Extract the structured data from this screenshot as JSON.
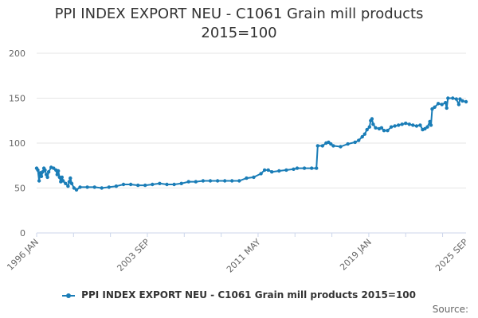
{
  "chart_data": {
    "type": "line",
    "title_line1": "PPI INDEX EXPORT NEU - C1061 Grain mill products",
    "title_line2": "2015=100",
    "ylim": [
      0,
      200
    ],
    "yticks": [
      0,
      50,
      100,
      150,
      200
    ],
    "xrange": [
      1996.0,
      2025.67
    ],
    "xticks": [
      {
        "label": "1996 JAN",
        "x": 1996.0
      },
      {
        "label": "2003 SEP",
        "x": 2003.67
      },
      {
        "label": "2011 MAY",
        "x": 2011.33
      },
      {
        "label": "2019 JAN",
        "x": 2019.0
      },
      {
        "label": "2025 SEP",
        "x": 2025.67
      }
    ],
    "legend": {
      "label": "PPI INDEX EXPORT NEU - C1061 Grain mill products 2015=100",
      "placement": "bottom-center"
    },
    "credits": "Source:",
    "color": "#1a7db7",
    "series": [
      {
        "name": "PPI INDEX EXPORT NEU - C1061 Grain mill products 2015=100",
        "points": [
          [
            1996.0,
            72
          ],
          [
            1996.08,
            70
          ],
          [
            1996.17,
            58
          ],
          [
            1996.25,
            67
          ],
          [
            1996.33,
            63
          ],
          [
            1996.42,
            68
          ],
          [
            1996.5,
            72
          ],
          [
            1996.58,
            70
          ],
          [
            1996.67,
            65
          ],
          [
            1996.75,
            62
          ],
          [
            1996.83,
            68
          ],
          [
            1997.0,
            73
          ],
          [
            1997.17,
            72
          ],
          [
            1997.33,
            70
          ],
          [
            1997.42,
            65
          ],
          [
            1997.5,
            69
          ],
          [
            1997.58,
            62
          ],
          [
            1997.67,
            57
          ],
          [
            1997.75,
            62
          ],
          [
            1997.83,
            58
          ],
          [
            1998.0,
            55
          ],
          [
            1998.17,
            52
          ],
          [
            1998.25,
            57
          ],
          [
            1998.33,
            61
          ],
          [
            1998.42,
            55
          ],
          [
            1998.58,
            50
          ],
          [
            1998.75,
            48
          ],
          [
            1999.0,
            51
          ],
          [
            1999.5,
            51
          ],
          [
            2000.0,
            51
          ],
          [
            2000.5,
            50
          ],
          [
            2001.0,
            51
          ],
          [
            2001.5,
            52
          ],
          [
            2002.0,
            54
          ],
          [
            2002.5,
            54
          ],
          [
            2003.0,
            53
          ],
          [
            2003.5,
            53
          ],
          [
            2004.0,
            54
          ],
          [
            2004.5,
            55
          ],
          [
            2005.0,
            54
          ],
          [
            2005.5,
            54
          ],
          [
            2006.0,
            55
          ],
          [
            2006.5,
            57
          ],
          [
            2007.0,
            57
          ],
          [
            2007.5,
            58
          ],
          [
            2008.0,
            58
          ],
          [
            2008.5,
            58
          ],
          [
            2009.0,
            58
          ],
          [
            2009.5,
            58
          ],
          [
            2010.0,
            58
          ],
          [
            2010.5,
            61
          ],
          [
            2011.0,
            62
          ],
          [
            2011.5,
            66
          ],
          [
            2011.75,
            70
          ],
          [
            2012.0,
            70
          ],
          [
            2012.25,
            68
          ],
          [
            2012.75,
            69
          ],
          [
            2013.25,
            70
          ],
          [
            2013.75,
            71
          ],
          [
            2014.0,
            72
          ],
          [
            2014.5,
            72
          ],
          [
            2015.0,
            72
          ],
          [
            2015.33,
            72
          ],
          [
            2015.42,
            97
          ],
          [
            2015.75,
            97
          ],
          [
            2016.0,
            100
          ],
          [
            2016.17,
            101
          ],
          [
            2016.33,
            99
          ],
          [
            2016.5,
            97
          ],
          [
            2017.0,
            96
          ],
          [
            2017.5,
            99
          ],
          [
            2018.0,
            101
          ],
          [
            2018.25,
            103
          ],
          [
            2018.5,
            107
          ],
          [
            2018.67,
            110
          ],
          [
            2018.83,
            115
          ],
          [
            2019.0,
            118
          ],
          [
            2019.08,
            125
          ],
          [
            2019.17,
            127
          ],
          [
            2019.25,
            121
          ],
          [
            2019.42,
            117
          ],
          [
            2019.67,
            116
          ],
          [
            2019.83,
            117
          ],
          [
            2020.0,
            114
          ],
          [
            2020.25,
            114
          ],
          [
            2020.5,
            118
          ],
          [
            2020.75,
            119
          ],
          [
            2021.0,
            120
          ],
          [
            2021.25,
            121
          ],
          [
            2021.5,
            122
          ],
          [
            2021.75,
            121
          ],
          [
            2022.0,
            120
          ],
          [
            2022.25,
            119
          ],
          [
            2022.5,
            120
          ],
          [
            2022.67,
            115
          ],
          [
            2022.83,
            116
          ],
          [
            2023.0,
            118
          ],
          [
            2023.17,
            124
          ],
          [
            2023.25,
            120
          ],
          [
            2023.33,
            138
          ],
          [
            2023.5,
            140
          ],
          [
            2023.75,
            144
          ],
          [
            2024.0,
            143
          ],
          [
            2024.25,
            145
          ],
          [
            2024.33,
            139
          ],
          [
            2024.42,
            150
          ],
          [
            2024.75,
            150
          ],
          [
            2025.0,
            149
          ],
          [
            2025.17,
            143
          ],
          [
            2025.25,
            149
          ],
          [
            2025.42,
            147
          ],
          [
            2025.67,
            146
          ]
        ]
      }
    ]
  }
}
